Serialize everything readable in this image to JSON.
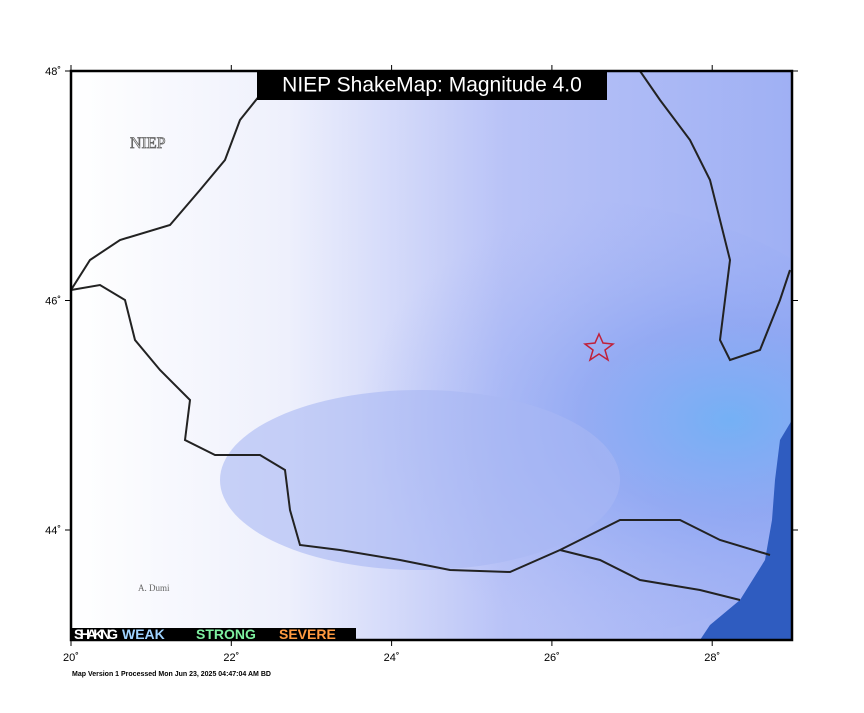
{
  "map": {
    "title": "NIEP ShakeMap: Magnitude 4.0",
    "watermark": "NIEP",
    "place_label": "A. Dumi",
    "lon_ticks": [
      "20˚",
      "22˚",
      "24˚",
      "26˚",
      "28˚"
    ],
    "lat_ticks": [
      "48˚",
      "46˚",
      "44˚"
    ],
    "legend": {
      "items": [
        "SHAKING",
        "WEAK",
        "STRONG",
        "SEVERE"
      ]
    },
    "footer": "Map Version 1 Processed Mon Jun 23, 2025 04:47:04 AM BD"
  }
}
